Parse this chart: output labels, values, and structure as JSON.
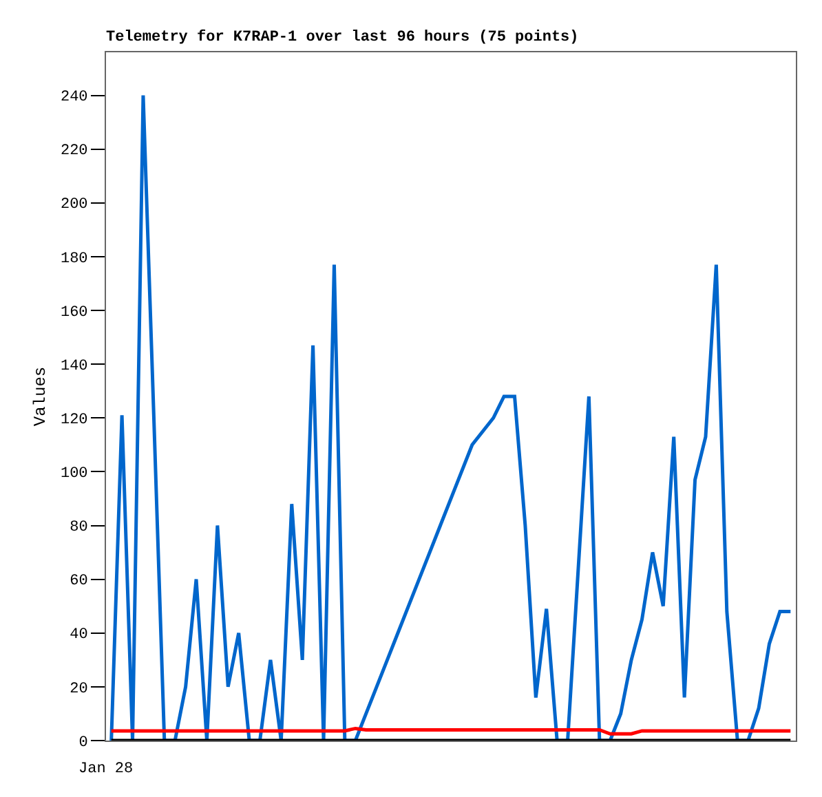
{
  "chart_data": {
    "type": "line",
    "title": "Telemetry for K7RAP-1 over last 96 hours (75 points)",
    "ylabel": "Values",
    "annotations": [
      "Jan 28"
    ],
    "categories": [
      null,
      null,
      null,
      null,
      null,
      null,
      null,
      null,
      null,
      null,
      null,
      null,
      null,
      null,
      null,
      null,
      null,
      null,
      null,
      null,
      null,
      null,
      null,
      null,
      null,
      null,
      null,
      null,
      null,
      null,
      null,
      null,
      null,
      null,
      null,
      null,
      null,
      null,
      null,
      null,
      null,
      null,
      null,
      null,
      null,
      null,
      null,
      null,
      null,
      null,
      null,
      null,
      null,
      null,
      null,
      null,
      null,
      null,
      null,
      null,
      null,
      null,
      null,
      null,
      null
    ],
    "ylim": [
      0,
      256
    ],
    "yticks": [
      0,
      20,
      40,
      60,
      80,
      100,
      120,
      140,
      160,
      180,
      200,
      220,
      240
    ],
    "marker": "none",
    "line_style": "solid",
    "series": [
      {
        "color": "#0066cc",
        "values": [
          0,
          121,
          0,
          240,
          121,
          0,
          0,
          20,
          60,
          0,
          80,
          20,
          40,
          0,
          0,
          30,
          0,
          88,
          30,
          147,
          0,
          177,
          0,
          0,
          10,
          20,
          30,
          40,
          50,
          60,
          70,
          80,
          90,
          100,
          110,
          115,
          120,
          128,
          128,
          80,
          16,
          49,
          0,
          0,
          64,
          128,
          0,
          0,
          10,
          30,
          45,
          70,
          50,
          113,
          16,
          97,
          113,
          177,
          48,
          0,
          0,
          12,
          36,
          48,
          48
        ]
      },
      {
        "color": "#ff0000",
        "values": [
          3.6,
          3.6,
          3.6,
          3.6,
          3.6,
          3.6,
          3.6,
          3.6,
          3.6,
          3.6,
          3.6,
          3.6,
          3.6,
          3.6,
          3.6,
          3.6,
          3.6,
          3.6,
          3.6,
          3.6,
          3.6,
          3.6,
          3.6,
          4.5,
          4.0,
          4.0,
          4.0,
          4.0,
          4.0,
          4.0,
          4.0,
          4.0,
          4.0,
          4.0,
          4.0,
          4.0,
          4.0,
          4.0,
          4.0,
          4.0,
          4.0,
          4.0,
          4.0,
          4.0,
          4.0,
          4.0,
          4.0,
          2.5,
          2.5,
          2.5,
          3.6,
          3.6,
          3.6,
          3.6,
          3.6,
          3.6,
          3.6,
          3.6,
          3.6,
          3.6,
          3.6,
          3.6,
          3.6,
          3.6,
          3.6
        ]
      },
      {
        "color": "#000000",
        "values": [
          0,
          0,
          0,
          0,
          0,
          0,
          0,
          0,
          0,
          0,
          0,
          0,
          0,
          0,
          0,
          0,
          0,
          0,
          0,
          0,
          0,
          0,
          0,
          0,
          0,
          0,
          0,
          0,
          0,
          0,
          0,
          0,
          0,
          0,
          0,
          0,
          0,
          0,
          0,
          0,
          0,
          0,
          0,
          0,
          0,
          0,
          0,
          0,
          0,
          0,
          0,
          0,
          0,
          0,
          0,
          0,
          0,
          0,
          0,
          0,
          0,
          0,
          0,
          0,
          0
        ]
      }
    ]
  }
}
